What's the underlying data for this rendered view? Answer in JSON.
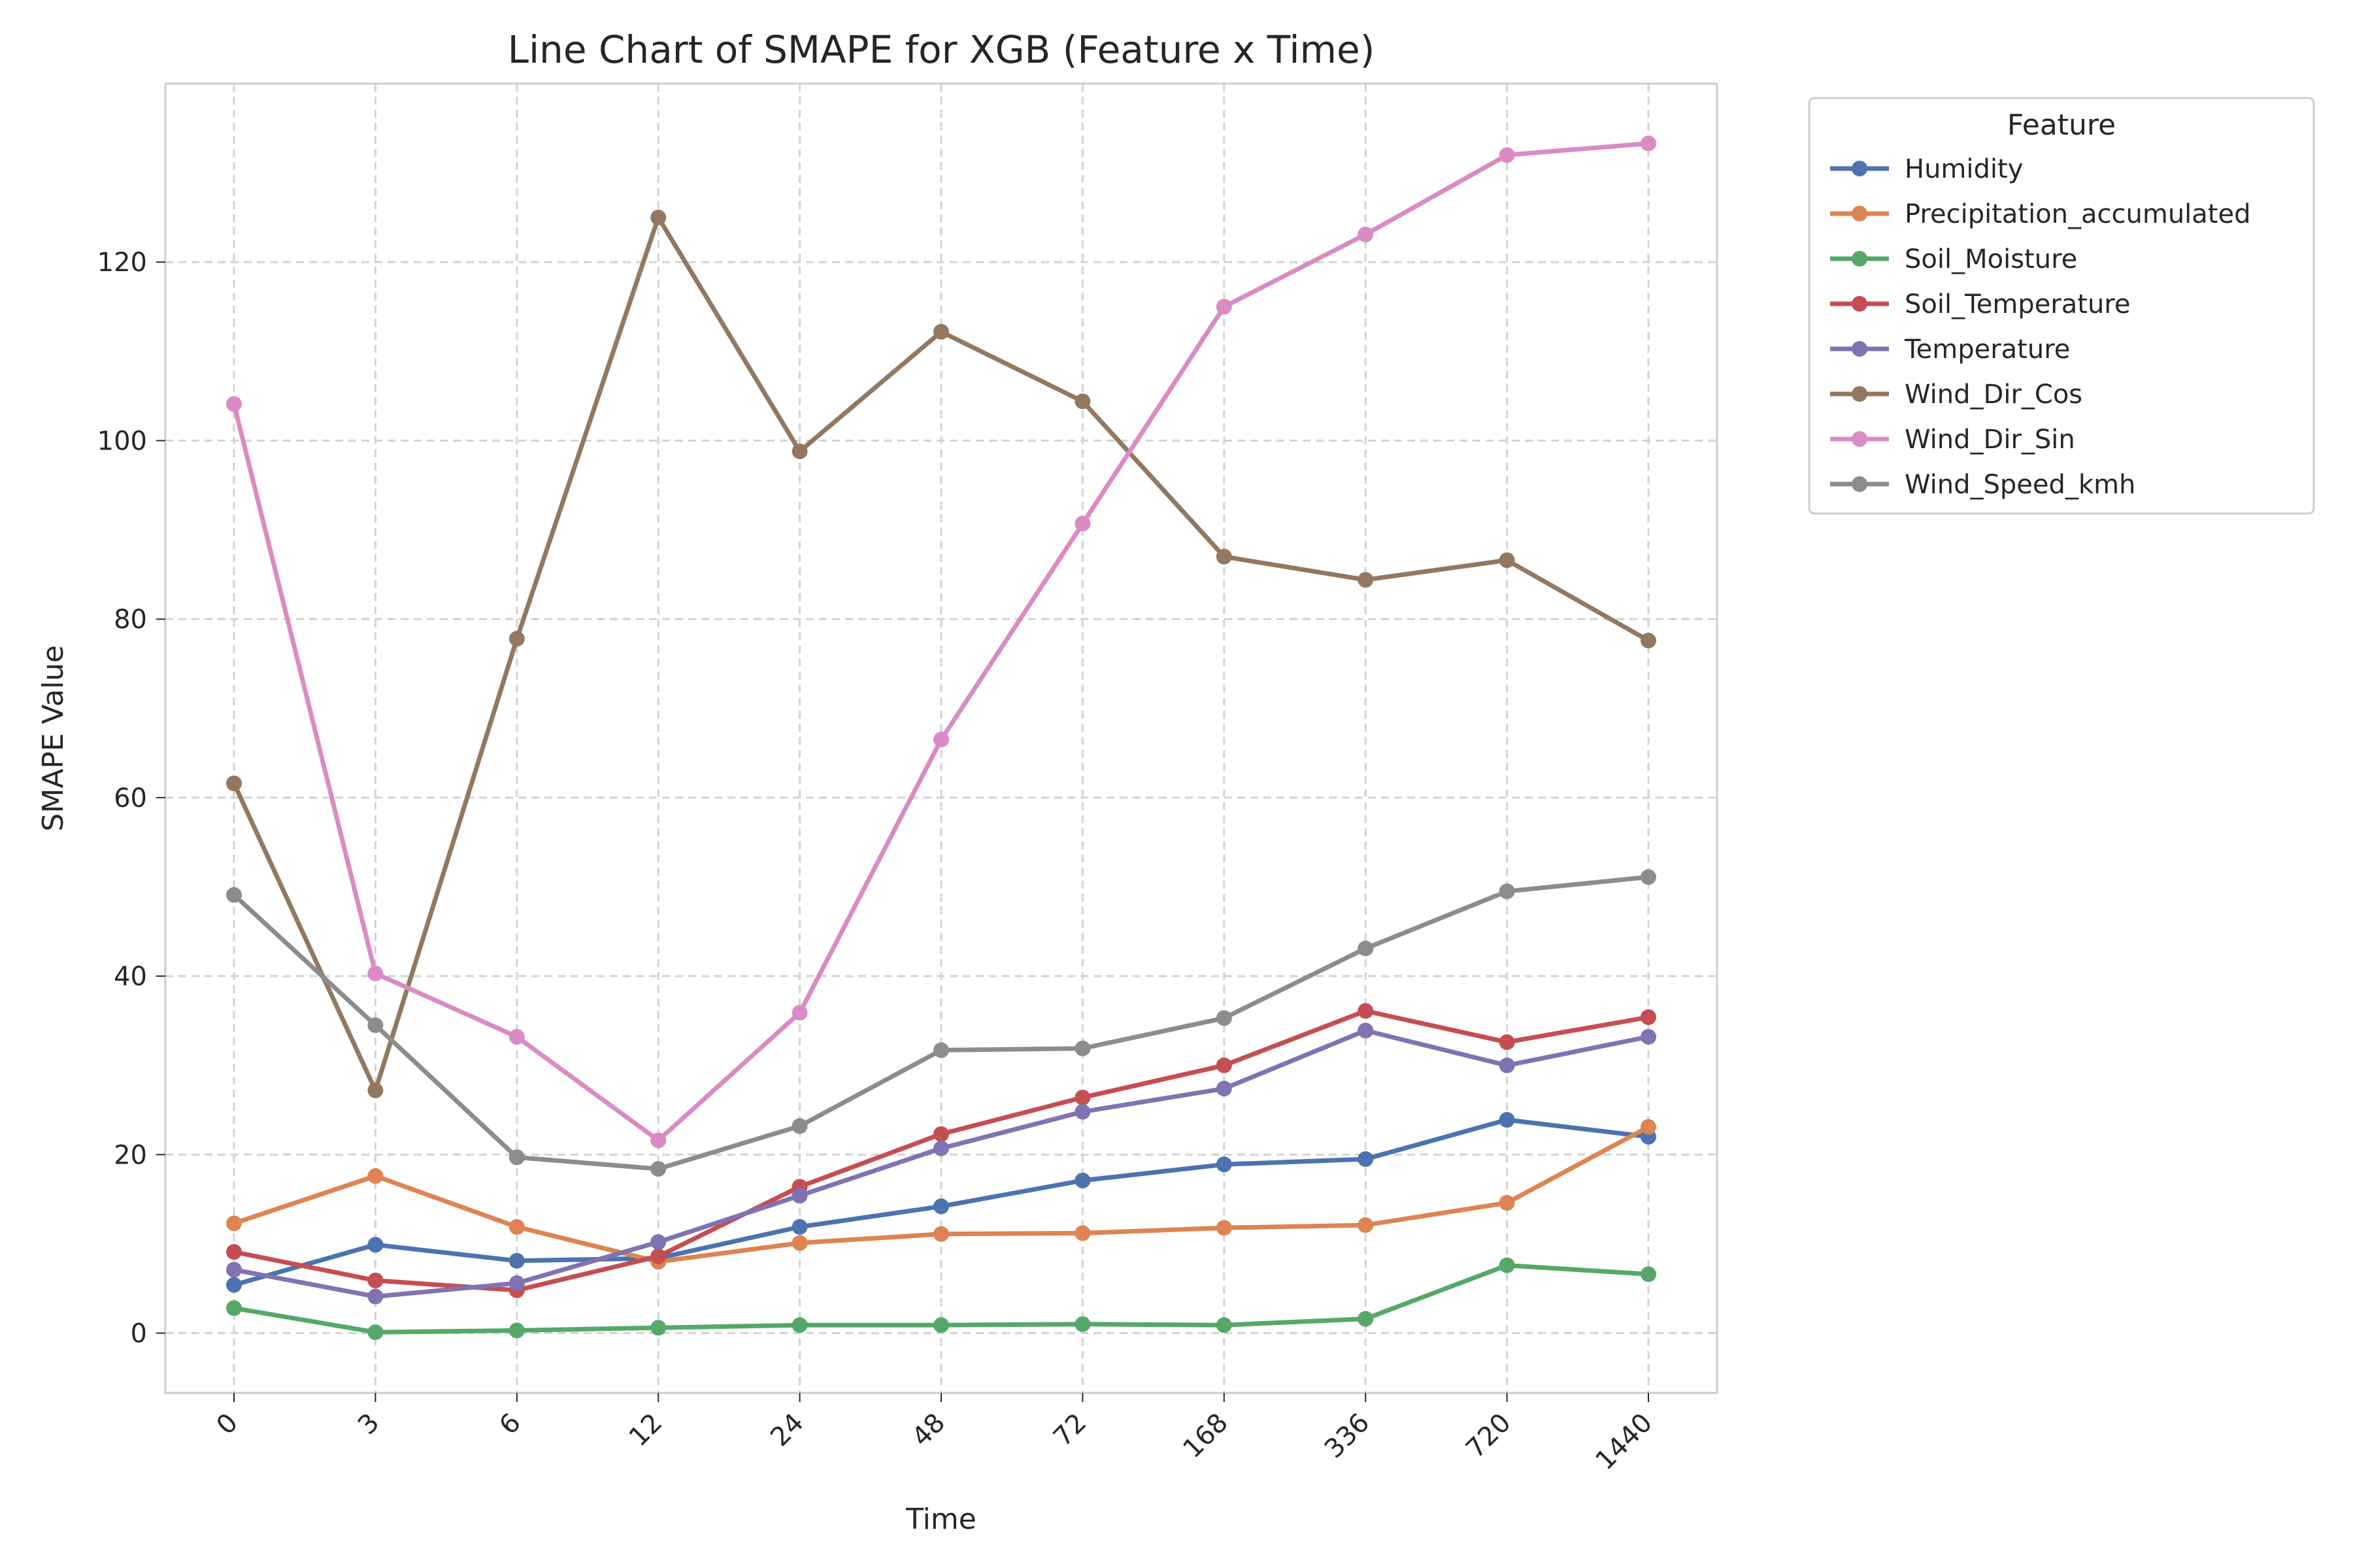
{
  "chart_data": {
    "type": "line",
    "title": "Line Chart of SMAPE for XGB (Feature x Time)",
    "xlabel": "Time",
    "ylabel": "SMAPE Value",
    "categories": [
      "0",
      "3",
      "6",
      "12",
      "24",
      "48",
      "72",
      "168",
      "336",
      "720",
      "1440"
    ],
    "ylim": [
      -6.7,
      140
    ],
    "yticks": [
      0,
      20,
      40,
      60,
      80,
      100,
      120
    ],
    "grid": true,
    "legend_title": "Feature",
    "legend_position": "outside-top-right",
    "series": [
      {
        "name": "Humidity",
        "color": "#4c72b0",
        "values": [
          5.4,
          9.9,
          8.1,
          8.4,
          11.9,
          14.2,
          17.1,
          18.9,
          19.5,
          23.9,
          22.0
        ]
      },
      {
        "name": "Precipitation_accumulated",
        "color": "#dd8452",
        "values": [
          12.3,
          17.6,
          11.9,
          8.0,
          10.1,
          11.1,
          11.2,
          11.8,
          12.1,
          14.6,
          23.1
        ]
      },
      {
        "name": "Soil_Moisture",
        "color": "#55a868",
        "values": [
          2.8,
          0.1,
          0.3,
          0.6,
          0.9,
          0.9,
          1.0,
          0.9,
          1.6,
          7.6,
          6.6
        ]
      },
      {
        "name": "Soil_Temperature",
        "color": "#c44e52",
        "values": [
          9.1,
          5.9,
          4.8,
          8.6,
          16.4,
          22.3,
          26.4,
          30.0,
          36.1,
          32.6,
          35.4
        ]
      },
      {
        "name": "Temperature",
        "color": "#8172b3",
        "values": [
          7.1,
          4.1,
          5.6,
          10.2,
          15.4,
          20.7,
          24.8,
          27.4,
          33.9,
          30.0,
          33.2
        ]
      },
      {
        "name": "Wind_Dir_Cos",
        "color": "#937860",
        "values": [
          61.6,
          27.2,
          77.8,
          125.0,
          98.8,
          112.2,
          104.4,
          87.0,
          84.4,
          86.6,
          77.6
        ]
      },
      {
        "name": "Wind_Dir_Sin",
        "color": "#da8bc3",
        "values": [
          104.1,
          40.3,
          33.2,
          21.6,
          35.9,
          66.5,
          90.7,
          115.0,
          123.1,
          132.0,
          133.3
        ]
      },
      {
        "name": "Wind_Speed_kmh",
        "color": "#8c8c8c",
        "values": [
          49.1,
          34.5,
          19.7,
          18.4,
          23.2,
          31.7,
          31.9,
          35.3,
          43.1,
          49.5,
          51.1
        ]
      }
    ]
  }
}
